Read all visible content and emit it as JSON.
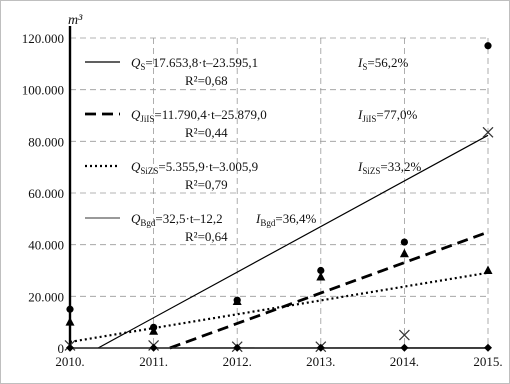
{
  "chart_data": {
    "type": "scatter",
    "y_unit_label": "m³",
    "xlim": [
      2010,
      2015
    ],
    "ylim": [
      0,
      120000
    ],
    "x_tick_labels": [
      "2010.",
      "2011.",
      "2012.",
      "2013.",
      "2014.",
      "2015."
    ],
    "y_tick_labels": [
      "0",
      "20.000",
      "40.000",
      "60.000",
      "80.000",
      "100.000",
      "120.000"
    ],
    "grid": "dashed",
    "legend_position": "top-left",
    "series": [
      {
        "key": "S",
        "marker": "circle",
        "line_style": "solid",
        "color": "#000000",
        "legend": {
          "q_name": "Q",
          "q_sub": "S",
          "q_formula": "=17.653,8·t–23.595,1",
          "r2": "R²=0,68",
          "i_name": "I",
          "i_sub": "S",
          "i_value": "=56,2%"
        },
        "x": [
          2010,
          2011,
          2012,
          2013,
          2014,
          2015
        ],
        "values": [
          15000,
          8000,
          18500,
          30000,
          41000,
          117000
        ],
        "trend": {
          "slope": 17653.8,
          "intercept": -23595.1
        }
      },
      {
        "key": "JiIS",
        "marker": "triangle",
        "line_style": "dashed",
        "color": "#000000",
        "legend": {
          "q_name": "Q",
          "q_sub": "JiIS",
          "q_formula": "=11.790,4·t–25.879,0",
          "r2": "R²=0,44",
          "i_name": "I",
          "i_sub": "JiIS",
          "i_value": "=77,0%"
        },
        "x": [
          2010,
          2011,
          2012,
          2013,
          2014,
          2015
        ],
        "values": [
          10000,
          6500,
          18000,
          27500,
          36500,
          30000
        ],
        "trend": {
          "slope": 11790.4,
          "intercept": -25879.0
        }
      },
      {
        "key": "SiZS",
        "marker": "x",
        "line_style": "dotted",
        "color": "#000000",
        "legend": {
          "q_name": "Q",
          "q_sub": "SiZS",
          "q_formula": "=5.355,9·t–3.005,9",
          "r2": "R²=0,79",
          "i_name": "I",
          "i_sub": "SiZS",
          "i_value": "=33,2%"
        },
        "x": [
          2010,
          2011,
          2012,
          2013,
          2014,
          2015
        ],
        "values": [
          1000,
          1000,
          500,
          500,
          5000,
          83500
        ],
        "trend": {
          "slope": 5355.9,
          "intercept": -3005.9
        }
      },
      {
        "key": "Bgd",
        "marker": "diamond",
        "line_style": "thin",
        "color": "#333333",
        "legend": {
          "q_name": "Q",
          "q_sub": "Bgd",
          "q_formula": "=32,5·t–12,2",
          "r2": "R²=0,64",
          "i_name": "I",
          "i_sub": "Bgd",
          "i_value": "=36,4%"
        },
        "x": [
          2010,
          2011,
          2012,
          2013,
          2014,
          2015
        ],
        "values": [
          100,
          100,
          100,
          100,
          100,
          100
        ],
        "trend": {
          "slope": 32.5,
          "intercept": -12.2
        }
      }
    ]
  }
}
